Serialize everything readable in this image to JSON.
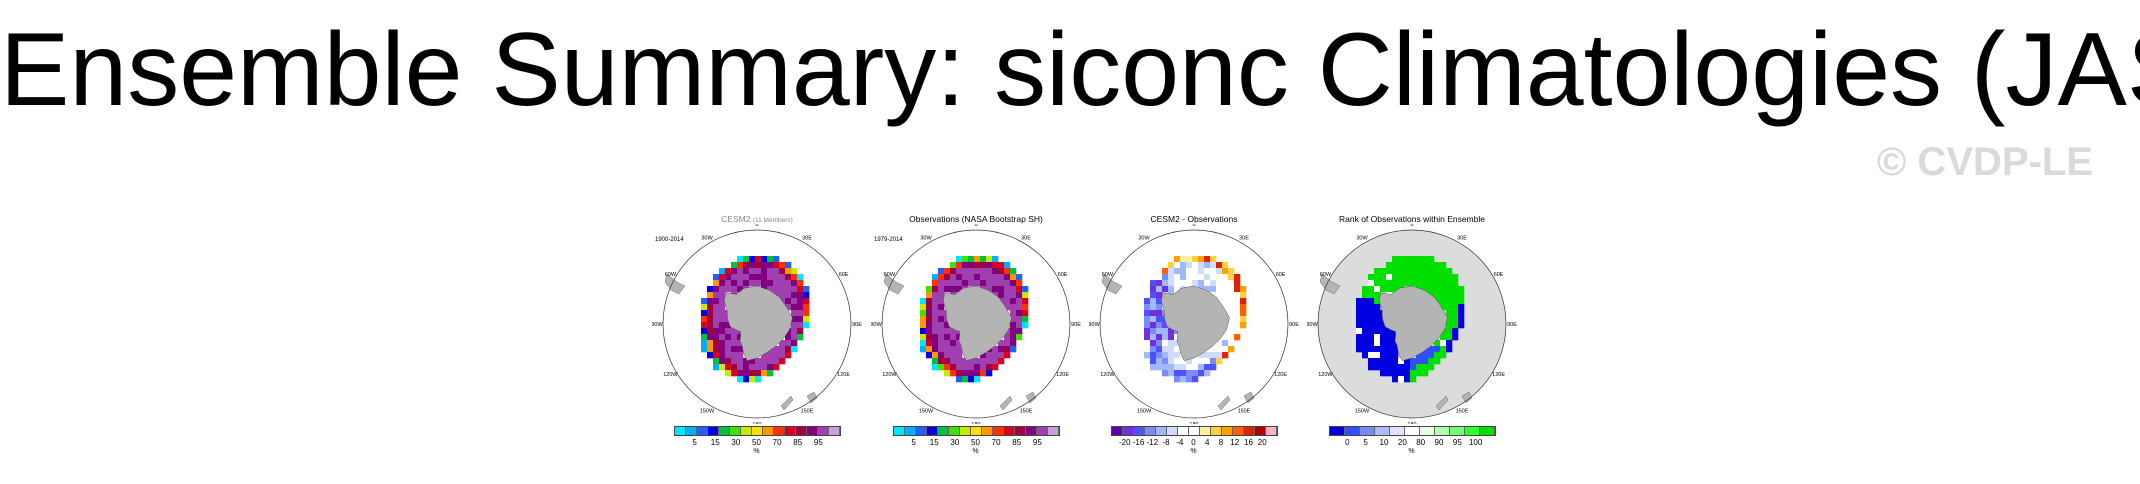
{
  "title": "Ensemble Summary: siconc Climatologies (JAS)",
  "watermark": "© CVDP-LE",
  "map_labels": {
    "lon_top": "0",
    "lon_bottom": "180",
    "lon_30w": "30W",
    "lon_30e": "30E",
    "lon_60w": "60W",
    "lon_60e": "60E",
    "lon_90w": "90W",
    "lon_90e": "90E",
    "lon_120w": "120W",
    "lon_120e": "120E",
    "lon_150w": "150W",
    "lon_150e": "150E"
  },
  "colors": {
    "land": "#b4b4b4",
    "palette_siconc": [
      "#00e5ff",
      "#00b0ff",
      "#2060ff",
      "#0000e0",
      "#00c040",
      "#40e000",
      "#c8e800",
      "#ffe000",
      "#ff9800",
      "#ff3000",
      "#d80020",
      "#a00040",
      "#800080",
      "#a040b0",
      "#c8a0d8"
    ],
    "palette_diff": [
      "#5a00b0",
      "#7030e0",
      "#5050ff",
      "#7a8aff",
      "#a0b8ff",
      "#d0dcff",
      "#ffffff",
      "#ffffff",
      "#fff0a0",
      "#ffd040",
      "#ffa000",
      "#ff6000",
      "#e02000",
      "#b00000",
      "#ffb0c8"
    ],
    "palette_rank": [
      "#0000e0",
      "#3050ff",
      "#7888ff",
      "#b0b8ff",
      "#e0e4ff",
      "#ffffff",
      "#e4ffe4",
      "#b0ffb0",
      "#70ff70",
      "#30ff30",
      "#00e000"
    ]
  },
  "panels": [
    {
      "title": "CESM2",
      "title_suffix": "(11 Members)",
      "period": "1900-2014",
      "colorbar": {
        "ticks": [
          "5",
          "15",
          "30",
          "50",
          "70",
          "85",
          "95"
        ],
        "unit": "%"
      }
    },
    {
      "title": "Observations (NASA Bootstrap SH)",
      "title_suffix": "",
      "period": "1979-2014",
      "colorbar": {
        "ticks": [
          "5",
          "15",
          "30",
          "50",
          "70",
          "85",
          "95"
        ],
        "unit": "%"
      }
    },
    {
      "title": "CESM2 - Observations",
      "title_suffix": "",
      "period": "",
      "colorbar": {
        "ticks": [
          "-20",
          "-16",
          "-12",
          "-8",
          "-4",
          "0",
          "4",
          "8",
          "12",
          "16",
          "20"
        ],
        "unit": "%"
      }
    },
    {
      "title": "Rank of Observations within Ensemble",
      "title_suffix": "",
      "period": "",
      "colorbar": {
        "ticks": [
          "0",
          "5",
          "10",
          "20",
          "80",
          "90",
          "95",
          "100"
        ],
        "unit": "%"
      }
    }
  ]
}
